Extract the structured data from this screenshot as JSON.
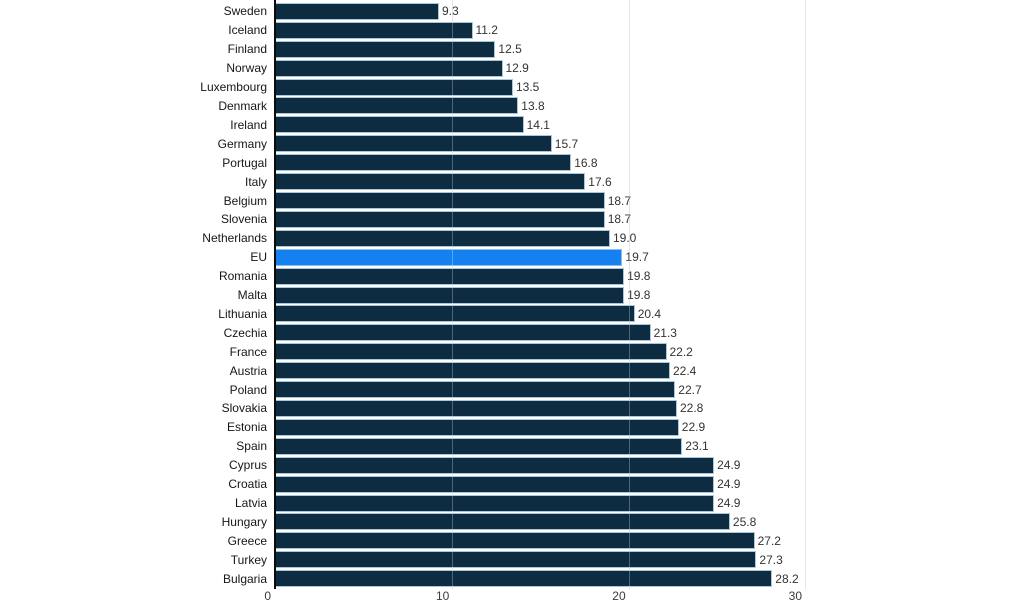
{
  "chart_data": {
    "type": "bar",
    "orientation": "horizontal",
    "title": "",
    "xlabel": "",
    "ylabel": "",
    "categories": [
      "Sweden",
      "Iceland",
      "Finland",
      "Norway",
      "Luxembourg",
      "Denmark",
      "Ireland",
      "Germany",
      "Portugal",
      "Italy",
      "Belgium",
      "Slovenia",
      "Netherlands",
      "EU",
      "Romania",
      "Malta",
      "Lithuania",
      "Czechia",
      "France",
      "Austria",
      "Poland",
      "Slovakia",
      "Estonia",
      "Spain",
      "Cyprus",
      "Croatia",
      "Latvia",
      "Hungary",
      "Greece",
      "Turkey",
      "Bulgaria"
    ],
    "values": [
      9.3,
      11.2,
      12.5,
      12.9,
      13.5,
      13.8,
      14.1,
      15.7,
      16.8,
      17.6,
      18.7,
      18.7,
      19.0,
      19.7,
      19.8,
      19.8,
      20.4,
      21.3,
      22.2,
      22.4,
      22.7,
      22.8,
      22.9,
      23.1,
      24.9,
      24.9,
      24.9,
      25.8,
      27.2,
      27.3,
      28.2
    ],
    "value_labels": [
      "9.3",
      "11.2",
      "12.5",
      "12.9",
      "13.5",
      "13.8",
      "14.1",
      "15.7",
      "16.8",
      "17.6",
      "18.7",
      "18.7",
      "19.0",
      "19.7",
      "19.8",
      "19.8",
      "20.4",
      "21.3",
      "22.2",
      "22.4",
      "22.7",
      "22.8",
      "22.9",
      "23.1",
      "24.9",
      "24.9",
      "24.9",
      "25.8",
      "27.2",
      "27.3",
      "28.2"
    ],
    "highlight_category": "EU",
    "xlim": [
      0,
      30
    ],
    "x_ticks": [
      0,
      10,
      20,
      30
    ],
    "x_tick_labels": [
      "0",
      "10",
      "20",
      "30"
    ],
    "grid": true,
    "legend": "none",
    "colors": {
      "bar": "#0d2c42",
      "highlight_bar": "#1581f0",
      "bar_border": "#a9c7d8",
      "highlight_bar_border": "#8fbdec",
      "gridline": "#d9dcde",
      "axis_line": "#0b0b0b",
      "category_label": "#161616",
      "value_label": "#333333",
      "tick_label": "#3c3c3c",
      "background": "#ffffff"
    }
  }
}
